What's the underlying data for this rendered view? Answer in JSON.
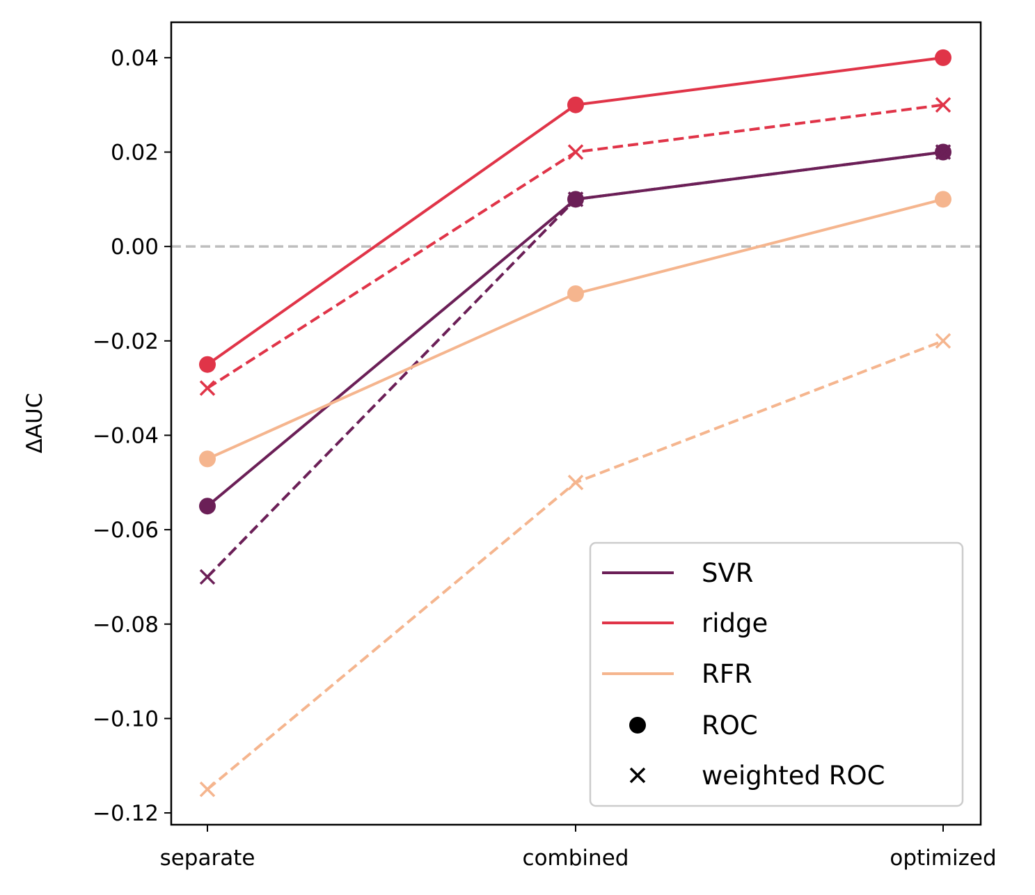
{
  "chart_data": {
    "type": "line",
    "title": "",
    "xlabel": "",
    "ylabel": "ΔAUC",
    "categories": [
      "separate",
      "combined",
      "optimized"
    ],
    "ylim": [
      -0.1225,
      0.0475
    ],
    "yticks": [
      0.04,
      0.02,
      0.0,
      -0.02,
      -0.04,
      -0.06,
      -0.08,
      -0.1,
      -0.12
    ],
    "ytick_labels": [
      "0.04",
      "0.02",
      "0.00",
      "−0.02",
      "−0.04",
      "−0.06",
      "−0.08",
      "−0.10",
      "−0.12"
    ],
    "reference_line": {
      "y": 0.0,
      "style": "dashed",
      "color": "#bdbdbd"
    },
    "grid": false,
    "legend_position": "bottom-right",
    "series": [
      {
        "model": "SVR",
        "metric": "ROC",
        "color": "#6b1f57",
        "dash": "solid",
        "marker": "circle",
        "values": [
          -0.055,
          0.01,
          0.02
        ]
      },
      {
        "model": "SVR",
        "metric": "weighted ROC",
        "color": "#6b1f57",
        "dash": "dashed",
        "marker": "x",
        "values": [
          -0.07,
          0.01,
          0.02
        ]
      },
      {
        "model": "ridge",
        "metric": "ROC",
        "color": "#e03448",
        "dash": "solid",
        "marker": "circle",
        "values": [
          -0.025,
          0.03,
          0.04
        ]
      },
      {
        "model": "ridge",
        "metric": "weighted ROC",
        "color": "#e03448",
        "dash": "dashed",
        "marker": "x",
        "values": [
          -0.03,
          0.02,
          0.03
        ]
      },
      {
        "model": "RFR",
        "metric": "ROC",
        "color": "#f5b58e",
        "dash": "solid",
        "marker": "circle",
        "values": [
          -0.045,
          -0.01,
          0.01
        ]
      },
      {
        "model": "RFR",
        "metric": "weighted ROC",
        "color": "#f5b58e",
        "dash": "dashed",
        "marker": "x",
        "values": [
          -0.115,
          -0.05,
          -0.02
        ]
      }
    ],
    "legend": [
      {
        "label": "SVR",
        "kind": "line",
        "color": "#6b1f57"
      },
      {
        "label": "ridge",
        "kind": "line",
        "color": "#e03448"
      },
      {
        "label": "RFR",
        "kind": "line",
        "color": "#f5b58e"
      },
      {
        "label": "ROC",
        "kind": "circle",
        "color": "#000000"
      },
      {
        "label": "weighted ROC",
        "kind": "x",
        "color": "#000000"
      }
    ]
  }
}
